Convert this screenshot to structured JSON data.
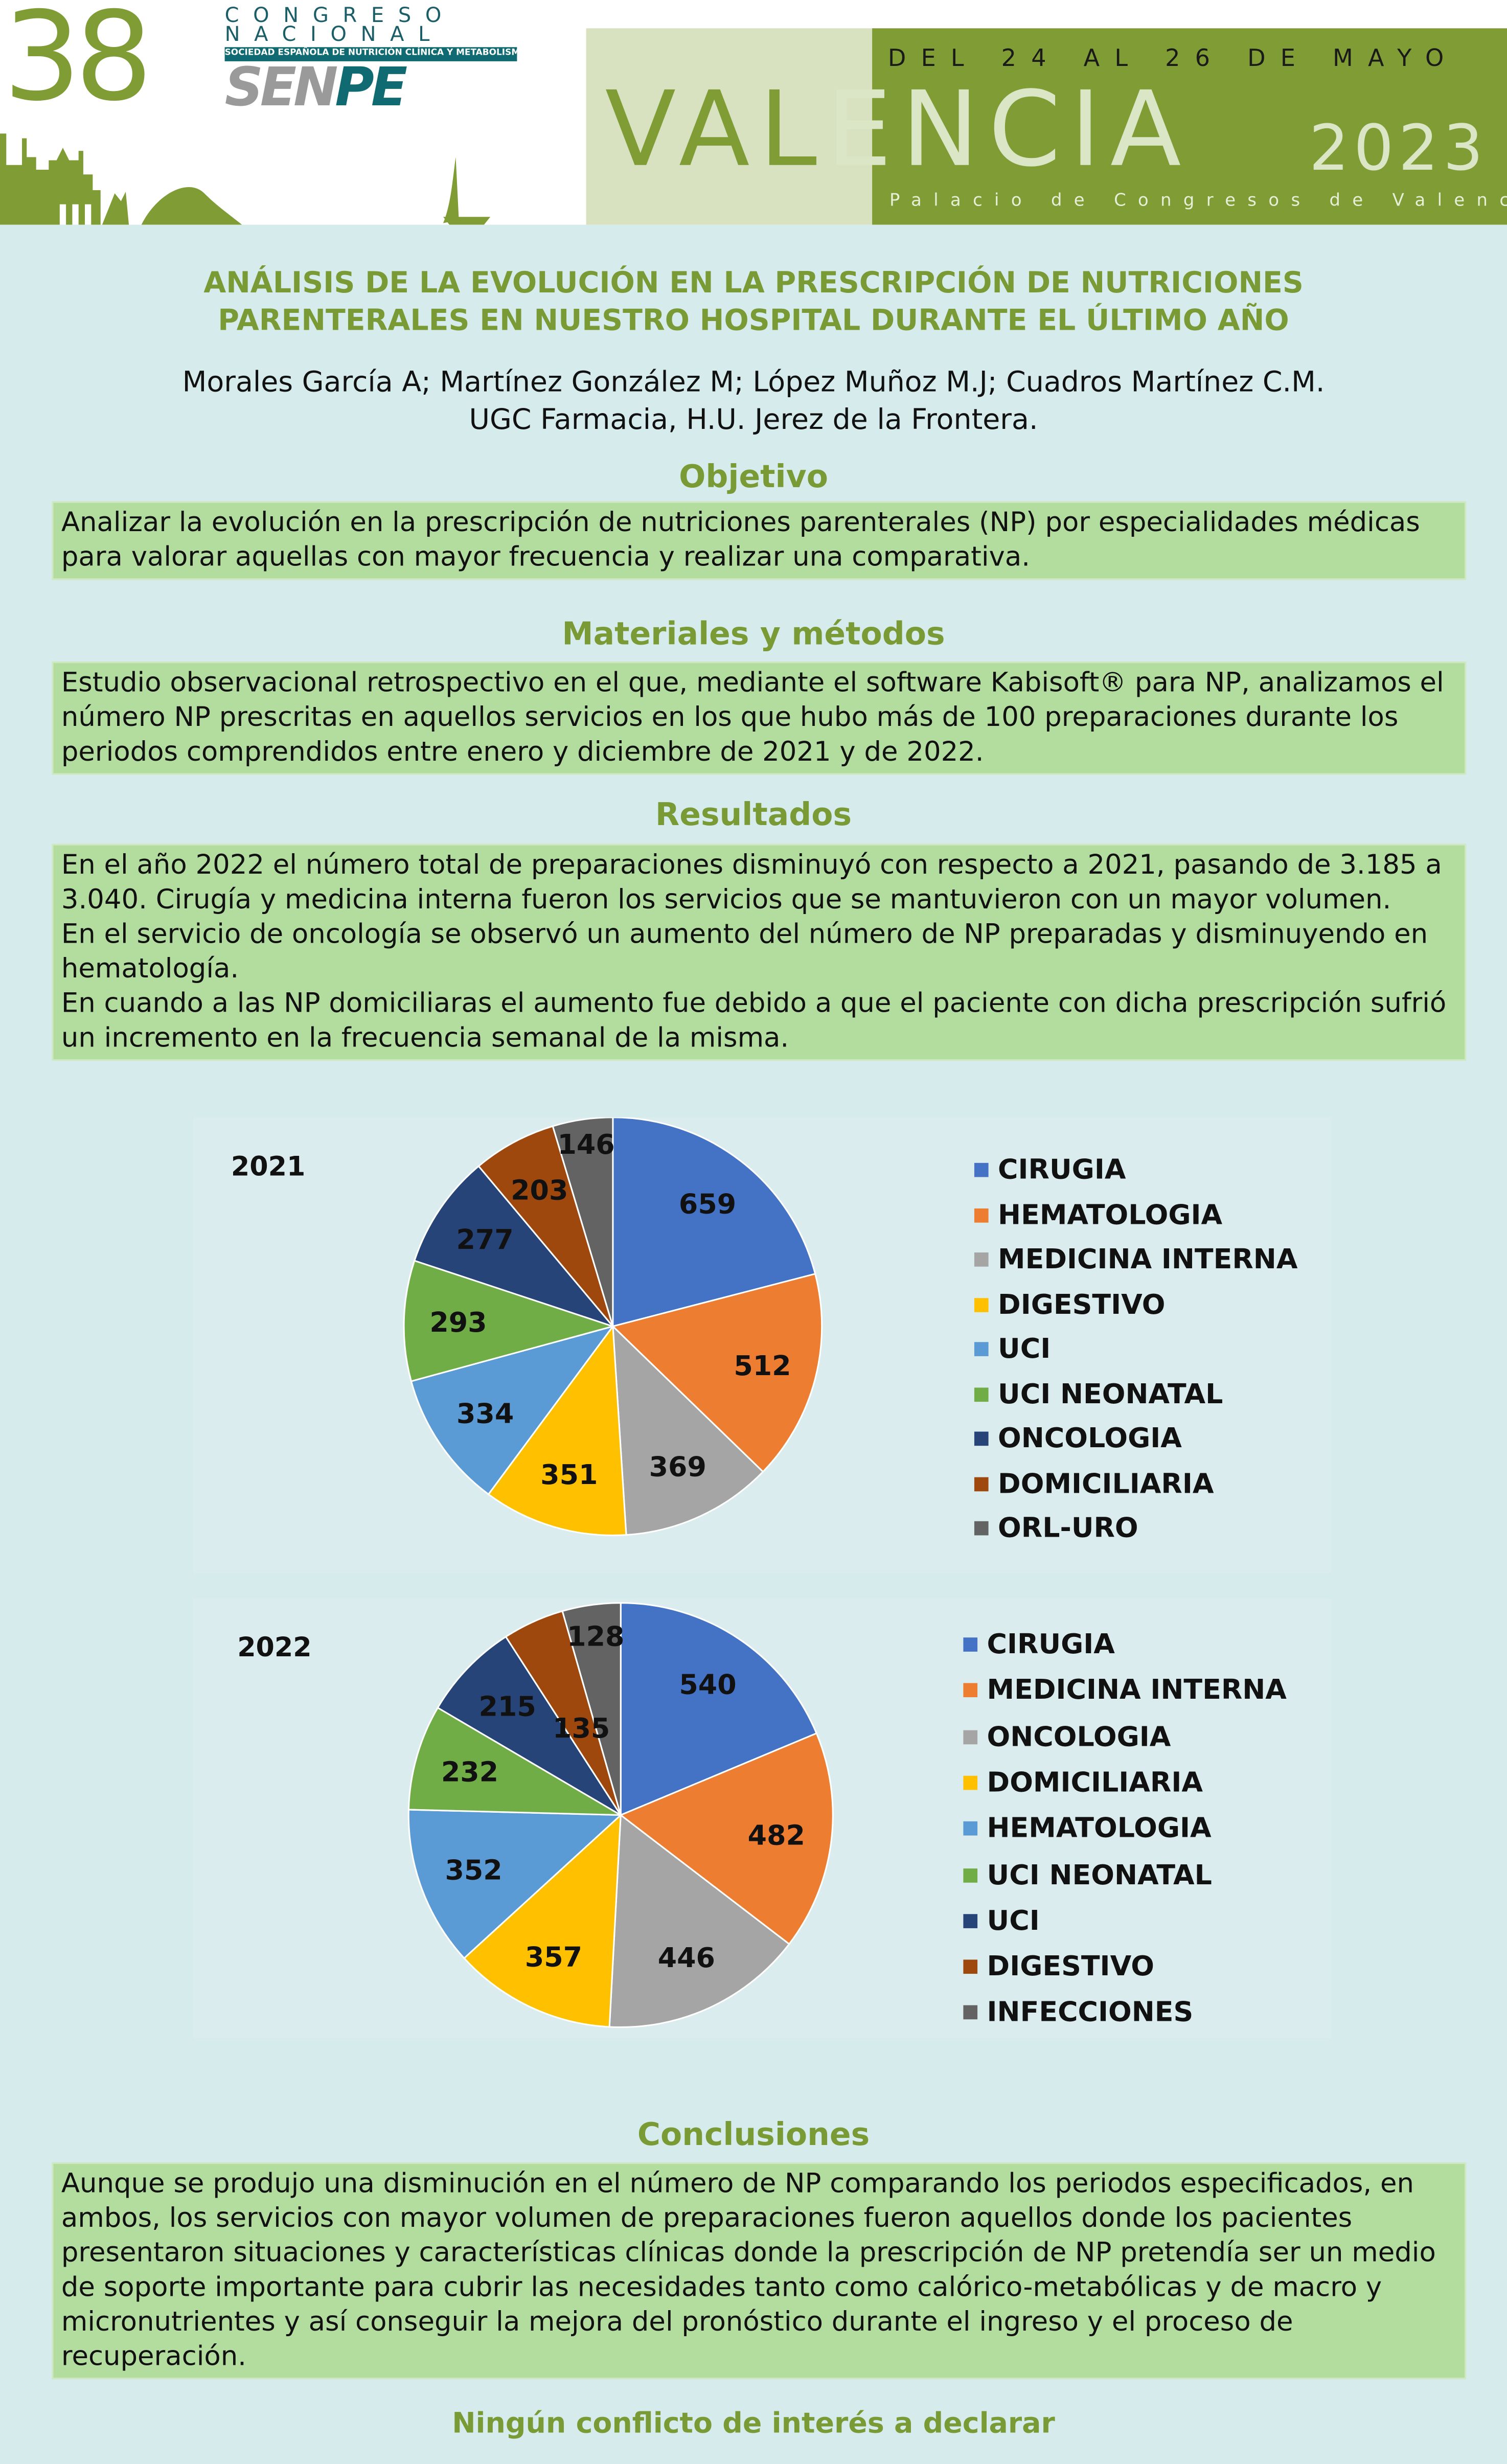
{
  "header": {
    "number": "38",
    "congreso_line1": "CONGRESO",
    "congreso_line2": "NACIONAL",
    "society": "SOCIEDAD ESPAÑOLA DE NUTRICIÓN CLÍNICA Y METABOLISMO",
    "logo_sen": "SEN",
    "logo_pe": "PE",
    "dates": "DEL 24 AL 26 DE MAYO",
    "city_part1": "VAL",
    "city_part2": "ENCIA",
    "year": "2023",
    "venue": "Palacio de Congresos de Valencia"
  },
  "title": {
    "line1": "ANÁLISIS DE LA EVOLUCIÓN EN LA PRESCRIPCIÓN DE NUTRICIONES",
    "line2": "PARENTERALES EN NUESTRO HOSPITAL DURANTE EL ÚLTIMO AÑO"
  },
  "authors": {
    "names": "Morales García A; Martínez González M; López Muñoz M.J; Cuadros Martínez C.M.",
    "affiliation": "UGC Farmacia, H.U. Jerez de la Frontera."
  },
  "objetivo": {
    "heading": "Objetivo",
    "text": "Analizar la evolución en la prescripción de nutriciones parenterales (NP) por especialidades médicas para valorar aquellas con mayor frecuencia y realizar una comparativa."
  },
  "metodos": {
    "heading": "Materiales y métodos",
    "text": "Estudio observacional retrospectivo en el que, mediante el software Kabisoft® para NP, analizamos el número NP prescritas en aquellos servicios en los que hubo más de 100 preparaciones durante los periodos comprendidos entre enero y diciembre de 2021 y de 2022."
  },
  "resultados": {
    "heading": "Resultados",
    "paragraphs": [
      "En el año 2022 el número total de preparaciones disminuyó con respecto a 2021, pasando de 3.185 a 3.040. Cirugía y medicina interna  fueron los servicios que se mantuvieron con un mayor volumen.",
      "En el servicio de oncología se observó un aumento del número de NP preparadas y disminuyendo en hematología.",
      "En cuando a las NP domiciliaras el aumento fue debido a que el paciente con dicha prescripción sufrió un incremento en la frecuencia semanal de la misma."
    ]
  },
  "chart_data": [
    {
      "type": "pie",
      "title": "2021",
      "categories": [
        "CIRUGIA",
        "HEMATOLOGIA",
        "MEDICINA INTERNA",
        "DIGESTIVO",
        "UCI",
        "UCI NEONATAL",
        "ONCOLOGIA",
        "DOMICILIARIA",
        "ORL-URO"
      ],
      "values": [
        659,
        512,
        369,
        351,
        334,
        293,
        277,
        203,
        146
      ],
      "colors": [
        "#4472c4",
        "#ed7d31",
        "#a5a5a5",
        "#ffc000",
        "#5b9bd5",
        "#70ad47",
        "#264478",
        "#9e480e",
        "#636363"
      ],
      "legend": "right"
    },
    {
      "type": "pie",
      "title": "2022",
      "categories": [
        "CIRUGIA",
        "MEDICINA INTERNA",
        "ONCOLOGIA",
        "DOMICILIARIA",
        "HEMATOLOGIA",
        "UCI NEONATAL",
        "UCI",
        "DIGESTIVO",
        "INFECCIONES"
      ],
      "values": [
        540,
        482,
        446,
        357,
        352,
        232,
        215,
        135,
        128
      ],
      "colors": [
        "#4472c4",
        "#ed7d31",
        "#a5a5a5",
        "#ffc000",
        "#5b9bd5",
        "#70ad47",
        "#264478",
        "#9e480e",
        "#636363"
      ],
      "legend": "right"
    }
  ],
  "conclusiones": {
    "heading": "Conclusiones",
    "text": "Aunque se produjo una disminución en el número de NP comparando los periodos especificados, en ambos, los servicios con mayor volumen de preparaciones fueron aquellos donde los pacientes presentaron situaciones y características clínicas donde la prescripción de NP pretendía ser un medio de soporte importante para cubrir las necesidades tanto como calórico-metabólicas y de macro y micronutrientes y así conseguir la mejora del pronóstico durante el ingreso y el proceso de recuperación."
  },
  "footer": "Ningún conflicto de interés a declarar"
}
